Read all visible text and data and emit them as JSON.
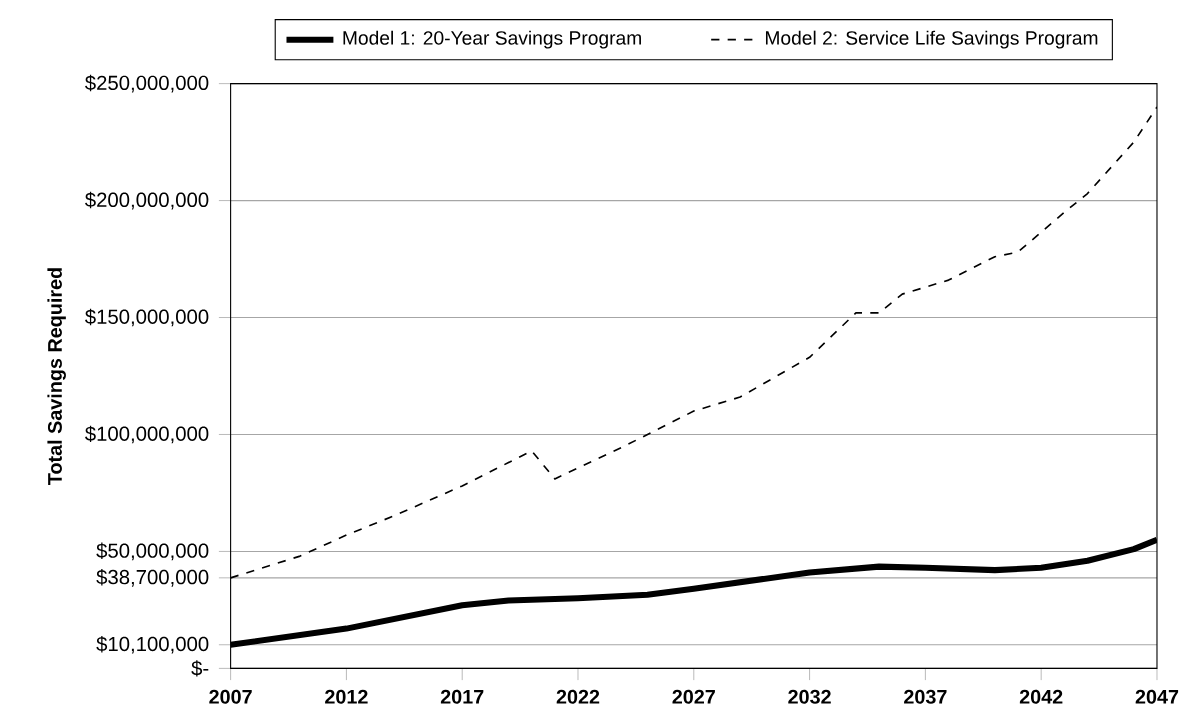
{
  "chart_data": {
    "type": "line",
    "ylabel": "Total Savings Required",
    "xlim": [
      2007,
      2047
    ],
    "xticks": [
      2007,
      2012,
      2017,
      2022,
      2027,
      2032,
      2037,
      2042,
      2047
    ],
    "ylim": [
      0,
      250000000
    ],
    "yticks": [
      {
        "value": 0,
        "label": "$-"
      },
      {
        "value": 10100000,
        "label": "$10,100,000"
      },
      {
        "value": 38700000,
        "label": "$38,700,000"
      },
      {
        "value": 50000000,
        "label": "$50,000,000"
      },
      {
        "value": 100000000,
        "label": "$100,000,000"
      },
      {
        "value": 150000000,
        "label": "$150,000,000"
      },
      {
        "value": 200000000,
        "label": "$200,000,000"
      },
      {
        "value": 250000000,
        "label": "$250,000,000"
      }
    ],
    "grid": "y",
    "legend": "top",
    "marker": "none",
    "series": [
      {
        "name": "Model 1: 20-Year Savings Program",
        "color": "#000000",
        "line_style": "solid",
        "x": [
          2007,
          2012,
          2017,
          2019,
          2022,
          2025,
          2027,
          2032,
          2035,
          2037,
          2040,
          2042,
          2044,
          2046,
          2047
        ],
        "values": [
          10100000,
          17000000,
          27000000,
          29000000,
          30000000,
          31500000,
          34000000,
          41000000,
          43500000,
          43000000,
          42000000,
          43000000,
          46000000,
          51000000,
          55000000
        ]
      },
      {
        "name": "Model 2: Service Life Savings Program",
        "color": "#000000",
        "line_style": "dashed",
        "x": [
          2007,
          2010,
          2012,
          2014,
          2017,
          2020,
          2021,
          2024,
          2027,
          2029,
          2032,
          2034,
          2035,
          2036,
          2038,
          2040,
          2041,
          2043,
          2044,
          2046,
          2047
        ],
        "values": [
          38700000,
          48000000,
          57000000,
          65000000,
          78000000,
          93000000,
          81000000,
          95000000,
          110000000,
          116000000,
          133000000,
          152000000,
          152000000,
          160000000,
          166000000,
          176000000,
          178000000,
          195000000,
          203000000,
          225000000,
          240000000
        ]
      }
    ]
  }
}
